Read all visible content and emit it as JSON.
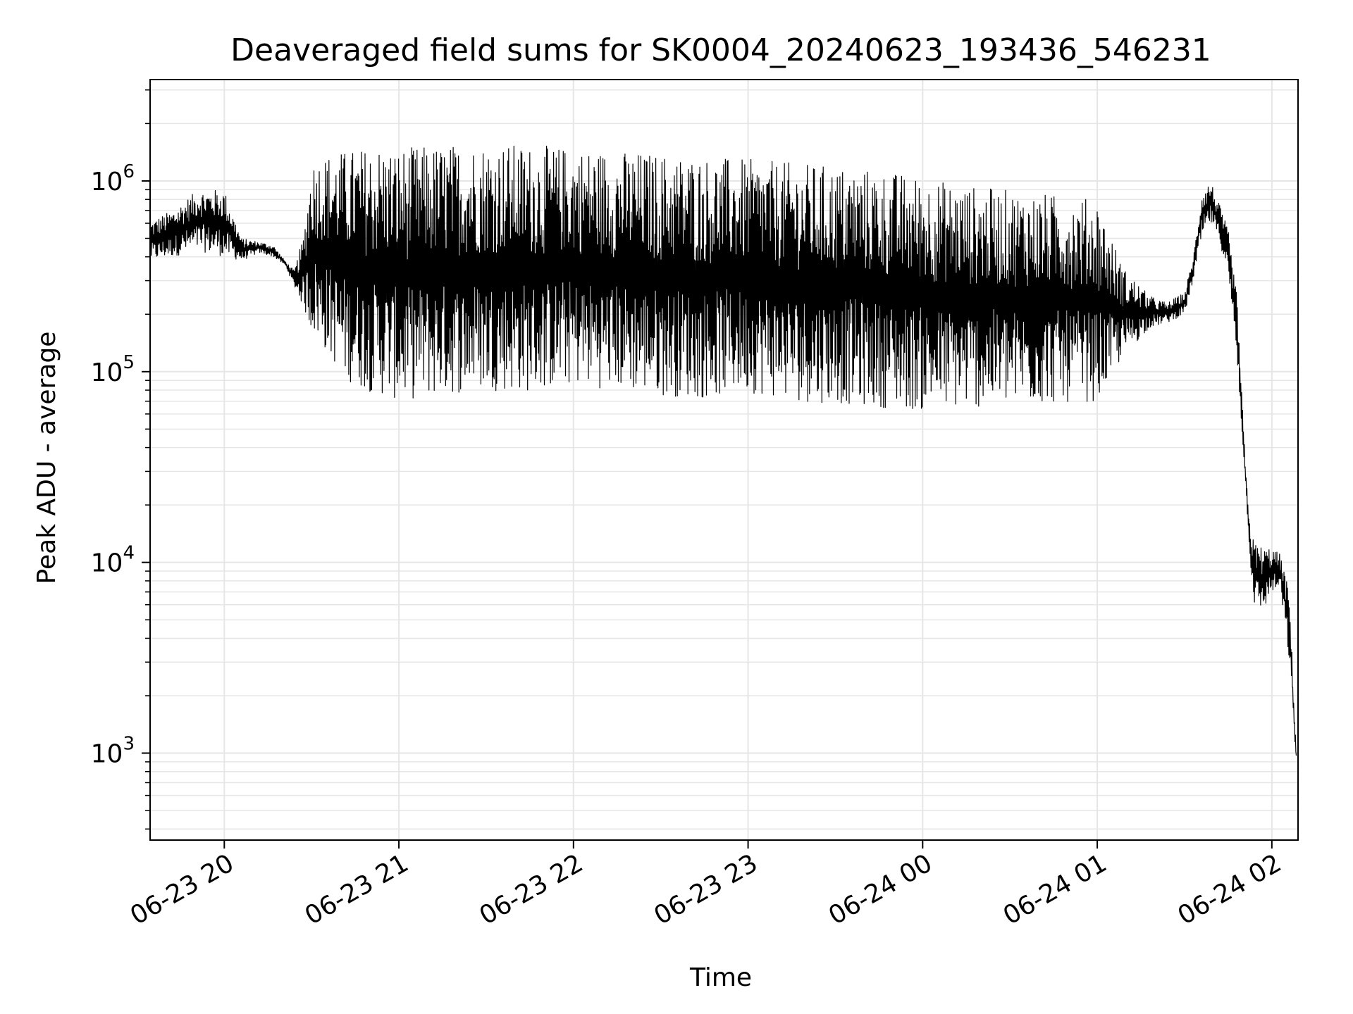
{
  "chart_data": {
    "type": "line",
    "title": "Deaveraged field sums for SK0004_20240623_193436_546231",
    "xlabel": "Time",
    "ylabel": "Peak ADU - average",
    "x_tick_labels": [
      "06-23 20",
      "06-23 21",
      "06-23 22",
      "06-23 23",
      "06-24 00",
      "06-24 01",
      "06-24 02"
    ],
    "x_tick_hours": [
      20,
      21,
      22,
      23,
      24,
      25,
      26
    ],
    "xlim_hours": [
      19.575,
      26.15
    ],
    "x_unit": "hours since 2024-06-23 00:00",
    "y_tick_labels": [
      {
        "base": "10",
        "exp": "3"
      },
      {
        "base": "10",
        "exp": "4"
      },
      {
        "base": "10",
        "exp": "5"
      },
      {
        "base": "10",
        "exp": "6"
      }
    ],
    "y_tick_values": [
      1000,
      10000,
      100000,
      1000000
    ],
    "yscale": "log",
    "ylim": [
      350,
      3400000
    ],
    "grid": true,
    "line_color": "#000000",
    "series": [
      {
        "x_hours": [
          19.58,
          19.7,
          19.85,
          20.0,
          20.1,
          20.2,
          20.28,
          20.35,
          20.4,
          20.45,
          20.5,
          20.6,
          20.7,
          20.8,
          20.9,
          21.0,
          21.25,
          21.5,
          21.75,
          22.0,
          22.25,
          22.5,
          22.75,
          23.0,
          23.25,
          23.5,
          23.75,
          24.0,
          24.25,
          24.5,
          24.75,
          25.0,
          25.15,
          25.3,
          25.4,
          25.5,
          25.55,
          25.6,
          25.65,
          25.7,
          25.75,
          25.8,
          25.85,
          25.88,
          25.9,
          25.95,
          26.0,
          26.05,
          26.1,
          26.14
        ],
        "envelope_low": [
          380000,
          400000,
          430000,
          400000,
          380000,
          420000,
          400000,
          360000,
          280000,
          220000,
          160000,
          120000,
          90000,
          80000,
          75000,
          70000,
          75000,
          80000,
          78000,
          85000,
          80000,
          75000,
          72000,
          78000,
          70000,
          68000,
          65000,
          62000,
          64000,
          66000,
          68000,
          70000,
          120000,
          170000,
          180000,
          200000,
          300000,
          500000,
          600000,
          480000,
          320000,
          120000,
          25000,
          9000,
          6000,
          5500,
          7000,
          7000,
          3000,
          900
        ],
        "envelope_high": [
          620000,
          700000,
          900000,
          900000,
          500000,
          480000,
          460000,
          380000,
          340000,
          500000,
          1300000,
          1400000,
          1450000,
          1500000,
          1550000,
          1500000,
          1550000,
          1600000,
          1550000,
          1500000,
          1450000,
          1400000,
          1350000,
          1300000,
          1250000,
          1200000,
          1150000,
          1050000,
          950000,
          900000,
          850000,
          800000,
          350000,
          250000,
          230000,
          260000,
          400000,
          900000,
          1000000,
          750000,
          550000,
          250000,
          30000,
          14000,
          13000,
          12000,
          12000,
          11000,
          7000,
          1000
        ]
      }
    ]
  }
}
